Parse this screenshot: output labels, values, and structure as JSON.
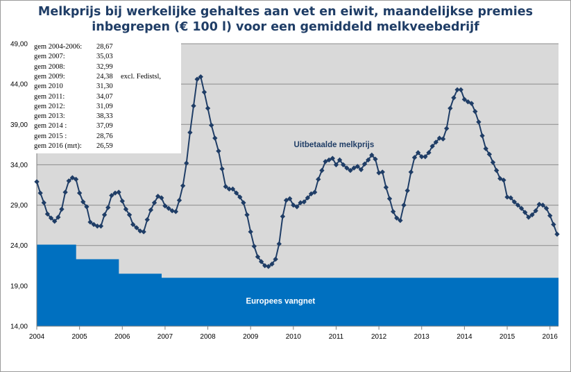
{
  "chart_data": {
    "type": "line",
    "title_lines": [
      "Melkprijs bij werkelijke gehaltes aan vet en eiwit, maandelijkse premies",
      "inbegrepen (€ 100 l) voor een gemiddeld melkveebedrijf"
    ],
    "xlabel": "",
    "ylabel": "",
    "ylim": [
      14,
      49
    ],
    "xlim": [
      2004,
      2016.2
    ],
    "y_ticks": [
      "14,00",
      "19,00",
      "24,00",
      "29,00",
      "34,00",
      "39,00",
      "44,00",
      "49,00"
    ],
    "x_ticks": [
      "2004",
      "2005",
      "2006",
      "2007",
      "2008",
      "2009",
      "2010",
      "2011",
      "2012",
      "2013",
      "2014",
      "2015",
      "2016"
    ],
    "grid": "horizontal",
    "colors": {
      "line": "#1f3d66",
      "area": "#0070c0",
      "plot_background": "#d9d9d9",
      "gridline": "#8c8c8c"
    },
    "series": [
      {
        "name": "Uitbetaalde melkprijs",
        "kind": "line",
        "x_start": 2004.0,
        "x_step": 0.0833333,
        "values": [
          31.9,
          30.5,
          29.3,
          27.9,
          27.4,
          27.0,
          27.5,
          28.5,
          30.6,
          32.0,
          32.4,
          32.2,
          30.5,
          29.4,
          28.8,
          26.9,
          26.6,
          26.4,
          26.4,
          27.8,
          28.7,
          30.2,
          30.5,
          30.6,
          29.5,
          28.5,
          27.8,
          26.6,
          26.2,
          25.8,
          25.7,
          27.2,
          28.4,
          29.3,
          30.1,
          29.9,
          28.9,
          28.6,
          28.3,
          28.2,
          29.6,
          31.4,
          34.2,
          38.0,
          41.3,
          44.6,
          44.9,
          43.0,
          41.0,
          38.9,
          37.3,
          35.7,
          33.5,
          31.3,
          31.0,
          31.0,
          30.5,
          30.0,
          29.3,
          27.8,
          25.7,
          23.9,
          22.6,
          22.0,
          21.5,
          21.4,
          21.7,
          22.3,
          24.2,
          27.6,
          29.6,
          29.8,
          29.0,
          28.8,
          29.3,
          29.4,
          29.9,
          30.4,
          30.6,
          32.2,
          33.3,
          34.4,
          34.6,
          34.8,
          34.0,
          34.6,
          34.0,
          33.6,
          33.3,
          33.6,
          33.8,
          33.4,
          34.1,
          34.6,
          35.2,
          34.7,
          33.0,
          33.1,
          31.2,
          29.8,
          28.2,
          27.4,
          27.1,
          29.0,
          30.8,
          33.1,
          34.9,
          35.5,
          35.0,
          35.0,
          35.5,
          36.3,
          36.8,
          37.3,
          37.2,
          38.5,
          41.0,
          42.3,
          43.3,
          43.3,
          42.1,
          41.8,
          41.6,
          40.6,
          39.3,
          37.6,
          36.0,
          35.3,
          34.3,
          33.3,
          32.3,
          32.1,
          30.0,
          29.9,
          29.4,
          29.0,
          28.6,
          28.1,
          27.5,
          27.8,
          28.3,
          29.1,
          29.0,
          28.6,
          27.7,
          26.6,
          25.4
        ]
      },
      {
        "name": "Europees vangnet",
        "kind": "area",
        "steps": [
          {
            "from": 2004.0,
            "to": 2004.92,
            "value": 24.1
          },
          {
            "from": 2004.92,
            "to": 2005.92,
            "value": 22.3
          },
          {
            "from": 2005.92,
            "to": 2006.92,
            "value": 20.5
          },
          {
            "from": 2006.92,
            "to": 2016.2,
            "value": 20.0
          }
        ]
      }
    ],
    "annotations": [
      {
        "text": "Uitbetaalde melkprijs",
        "x": 2010.95,
        "y": 36.2
      },
      {
        "text": "Europees vangnet",
        "x": 2009.7,
        "y": 16.8
      }
    ],
    "stats_box": [
      {
        "label": "gem 2004-2006:",
        "value": "28,67"
      },
      {
        "label": "gem 2007:",
        "value": "35,03"
      },
      {
        "label": "gem 2008:",
        "value": "32,99"
      },
      {
        "label": "gem 2009:",
        "value": "24,38",
        "note": "excl. Fedistsl,"
      },
      {
        "label": "gem 2010",
        "value": "31,30"
      },
      {
        "label": "gem 2011:",
        "value": "34,07"
      },
      {
        "label": "gem 2012:",
        "value": "31,09"
      },
      {
        "label": "gem 2013:",
        "value": "38,33"
      },
      {
        "label": "gem 2014 :",
        "value": "37,09"
      },
      {
        "label": "gem 2015 :",
        "value": "28,76"
      },
      {
        "label": "gem 2016 (mrt):",
        "value": "26,59"
      }
    ]
  }
}
